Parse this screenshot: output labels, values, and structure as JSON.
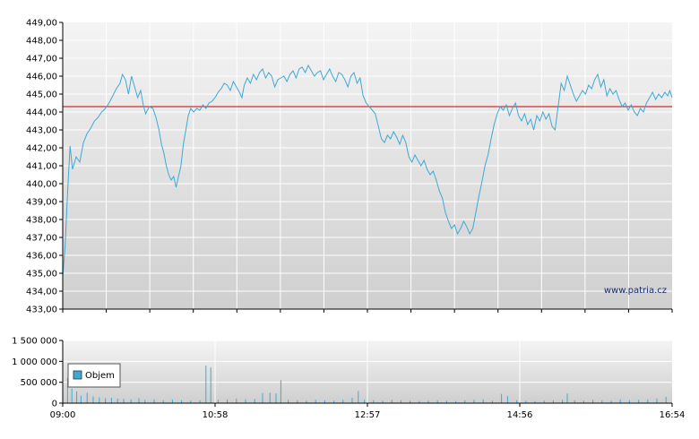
{
  "watermark": "www.patria.cz",
  "chart_data": [
    {
      "type": "line",
      "name": "price",
      "ylim": [
        433,
        449
      ],
      "yticks": [
        "449,00",
        "448,00",
        "447,00",
        "446,00",
        "445,00",
        "444,00",
        "443,00",
        "442,00",
        "441,00",
        "440,00",
        "439,00",
        "438,00",
        "437,00",
        "436,00",
        "435,00",
        "434,00",
        "433,00"
      ],
      "reference_value": 444.3,
      "reference_color": "#cc0000",
      "line_color": "#3fa9d6",
      "x_range": [
        0,
        100
      ],
      "points": [
        [
          0,
          434.8
        ],
        [
          0.4,
          436.5
        ],
        [
          0.8,
          439.5
        ],
        [
          1.2,
          442.1
        ],
        [
          1.6,
          440.8
        ],
        [
          2.2,
          441.5
        ],
        [
          2.8,
          441.2
        ],
        [
          3.4,
          442.3
        ],
        [
          4.0,
          442.8
        ],
        [
          4.6,
          443.1
        ],
        [
          5.2,
          443.5
        ],
        [
          5.8,
          443.7
        ],
        [
          6.4,
          444.0
        ],
        [
          7.0,
          444.2
        ],
        [
          7.6,
          444.5
        ],
        [
          8.2,
          444.9
        ],
        [
          8.8,
          445.3
        ],
        [
          9.4,
          445.6
        ],
        [
          9.8,
          446.1
        ],
        [
          10.3,
          445.8
        ],
        [
          10.8,
          445.0
        ],
        [
          11.3,
          446.0
        ],
        [
          11.8,
          445.4
        ],
        [
          12.3,
          444.8
        ],
        [
          12.8,
          445.2
        ],
        [
          13.2,
          444.4
        ],
        [
          13.6,
          443.9
        ],
        [
          14.2,
          444.3
        ],
        [
          14.8,
          444.2
        ],
        [
          15.3,
          443.7
        ],
        [
          15.8,
          443.0
        ],
        [
          16.2,
          442.2
        ],
        [
          16.6,
          441.7
        ],
        [
          17.0,
          441.0
        ],
        [
          17.4,
          440.5
        ],
        [
          17.8,
          440.2
        ],
        [
          18.2,
          440.4
        ],
        [
          18.6,
          439.8
        ],
        [
          19.0,
          440.4
        ],
        [
          19.4,
          441.0
        ],
        [
          19.8,
          442.2
        ],
        [
          20.2,
          443.0
        ],
        [
          20.6,
          443.8
        ],
        [
          21.0,
          444.2
        ],
        [
          21.5,
          444.0
        ],
        [
          22.0,
          444.2
        ],
        [
          22.5,
          444.1
        ],
        [
          23.0,
          444.4
        ],
        [
          23.5,
          444.2
        ],
        [
          24.0,
          444.5
        ],
        [
          24.5,
          444.6
        ],
        [
          25.0,
          444.8
        ],
        [
          25.5,
          445.1
        ],
        [
          26.0,
          445.3
        ],
        [
          26.5,
          445.6
        ],
        [
          27.0,
          445.5
        ],
        [
          27.5,
          445.2
        ],
        [
          28.0,
          445.7
        ],
        [
          28.5,
          445.4
        ],
        [
          29.0,
          445.1
        ],
        [
          29.4,
          444.8
        ],
        [
          29.8,
          445.5
        ],
        [
          30.3,
          445.9
        ],
        [
          30.8,
          445.6
        ],
        [
          31.3,
          446.1
        ],
        [
          31.8,
          445.8
        ],
        [
          32.3,
          446.2
        ],
        [
          32.8,
          446.4
        ],
        [
          33.3,
          445.9
        ],
        [
          33.8,
          446.2
        ],
        [
          34.3,
          446.0
        ],
        [
          34.8,
          445.4
        ],
        [
          35.3,
          445.8
        ],
        [
          35.8,
          445.9
        ],
        [
          36.3,
          446.0
        ],
        [
          36.8,
          445.7
        ],
        [
          37.3,
          446.1
        ],
        [
          37.8,
          446.3
        ],
        [
          38.3,
          445.9
        ],
        [
          38.8,
          446.4
        ],
        [
          39.3,
          446.5
        ],
        [
          39.8,
          446.2
        ],
        [
          40.3,
          446.6
        ],
        [
          40.8,
          446.3
        ],
        [
          41.3,
          446.0
        ],
        [
          41.8,
          446.2
        ],
        [
          42.3,
          446.3
        ],
        [
          42.8,
          445.8
        ],
        [
          43.3,
          446.1
        ],
        [
          43.8,
          446.4
        ],
        [
          44.3,
          446.0
        ],
        [
          44.8,
          445.7
        ],
        [
          45.3,
          446.2
        ],
        [
          45.8,
          446.1
        ],
        [
          46.3,
          445.8
        ],
        [
          46.8,
          445.4
        ],
        [
          47.3,
          446.0
        ],
        [
          47.8,
          446.2
        ],
        [
          48.3,
          445.6
        ],
        [
          48.8,
          445.9
        ],
        [
          49.3,
          444.9
        ],
        [
          49.8,
          444.5
        ],
        [
          50.3,
          444.3
        ],
        [
          50.8,
          444.1
        ],
        [
          51.3,
          443.9
        ],
        [
          51.8,
          443.2
        ],
        [
          52.3,
          442.5
        ],
        [
          52.8,
          442.3
        ],
        [
          53.3,
          442.7
        ],
        [
          53.8,
          442.5
        ],
        [
          54.3,
          442.9
        ],
        [
          54.8,
          442.6
        ],
        [
          55.3,
          442.2
        ],
        [
          55.8,
          442.7
        ],
        [
          56.3,
          442.3
        ],
        [
          56.8,
          441.5
        ],
        [
          57.3,
          441.2
        ],
        [
          57.8,
          441.6
        ],
        [
          58.3,
          441.3
        ],
        [
          58.8,
          441.0
        ],
        [
          59.3,
          441.3
        ],
        [
          59.8,
          440.8
        ],
        [
          60.3,
          440.5
        ],
        [
          60.8,
          440.7
        ],
        [
          61.3,
          440.2
        ],
        [
          61.8,
          439.6
        ],
        [
          62.3,
          439.2
        ],
        [
          62.8,
          438.4
        ],
        [
          63.3,
          437.9
        ],
        [
          63.8,
          437.5
        ],
        [
          64.3,
          437.7
        ],
        [
          64.8,
          437.2
        ],
        [
          65.3,
          437.5
        ],
        [
          65.8,
          437.9
        ],
        [
          66.3,
          437.6
        ],
        [
          66.8,
          437.2
        ],
        [
          67.3,
          437.5
        ],
        [
          67.8,
          438.4
        ],
        [
          68.3,
          439.3
        ],
        [
          68.8,
          440.1
        ],
        [
          69.3,
          441.0
        ],
        [
          69.8,
          441.6
        ],
        [
          70.3,
          442.5
        ],
        [
          70.8,
          443.3
        ],
        [
          71.3,
          443.9
        ],
        [
          71.8,
          444.3
        ],
        [
          72.3,
          444.1
        ],
        [
          72.8,
          444.4
        ],
        [
          73.3,
          443.8
        ],
        [
          73.8,
          444.2
        ],
        [
          74.3,
          444.5
        ],
        [
          74.8,
          443.8
        ],
        [
          75.3,
          443.5
        ],
        [
          75.8,
          443.9
        ],
        [
          76.3,
          443.3
        ],
        [
          76.8,
          443.6
        ],
        [
          77.3,
          443.0
        ],
        [
          77.8,
          443.8
        ],
        [
          78.3,
          443.5
        ],
        [
          78.8,
          444.0
        ],
        [
          79.3,
          443.6
        ],
        [
          79.8,
          443.9
        ],
        [
          80.3,
          443.2
        ],
        [
          80.8,
          443.0
        ],
        [
          81.3,
          444.3
        ],
        [
          81.8,
          445.6
        ],
        [
          82.3,
          445.2
        ],
        [
          82.8,
          446.0
        ],
        [
          83.3,
          445.5
        ],
        [
          83.8,
          445.0
        ],
        [
          84.3,
          444.6
        ],
        [
          84.8,
          444.9
        ],
        [
          85.3,
          445.2
        ],
        [
          85.8,
          445.0
        ],
        [
          86.3,
          445.5
        ],
        [
          86.8,
          445.3
        ],
        [
          87.3,
          445.8
        ],
        [
          87.8,
          446.1
        ],
        [
          88.3,
          445.4
        ],
        [
          88.8,
          445.8
        ],
        [
          89.3,
          444.9
        ],
        [
          89.8,
          445.3
        ],
        [
          90.3,
          445.0
        ],
        [
          90.8,
          445.2
        ],
        [
          91.3,
          444.7
        ],
        [
          91.8,
          444.3
        ],
        [
          92.3,
          444.5
        ],
        [
          92.8,
          444.1
        ],
        [
          93.3,
          444.4
        ],
        [
          93.8,
          444.0
        ],
        [
          94.3,
          443.8
        ],
        [
          94.8,
          444.2
        ],
        [
          95.3,
          444.0
        ],
        [
          95.8,
          444.5
        ],
        [
          96.3,
          444.8
        ],
        [
          96.8,
          445.1
        ],
        [
          97.3,
          444.7
        ],
        [
          97.8,
          445.0
        ],
        [
          98.3,
          444.8
        ],
        [
          98.8,
          445.1
        ],
        [
          99.3,
          444.9
        ],
        [
          99.6,
          445.2
        ],
        [
          100,
          444.8
        ]
      ]
    },
    {
      "type": "bar",
      "name": "volume",
      "ylim": [
        0,
        1500000
      ],
      "yticks": [
        "1 500 000",
        "1 000 000",
        "500 000",
        "0"
      ],
      "legend": "Objem",
      "bar_color": "#3fa9d6",
      "xticks": [
        "09:00",
        "10:58",
        "12:57",
        "14:56",
        "16:54"
      ],
      "bars": [
        [
          0.8,
          600000
        ],
        [
          1.5,
          350000
        ],
        [
          2.3,
          280000
        ],
        [
          3.0,
          180000
        ],
        [
          4.0,
          250000
        ],
        [
          5.0,
          160000
        ],
        [
          6.0,
          140000
        ],
        [
          7.0,
          120000
        ],
        [
          8.0,
          130000
        ],
        [
          9.0,
          110000
        ],
        [
          10.0,
          100000
        ],
        [
          11.2,
          90000
        ],
        [
          12.5,
          120000
        ],
        [
          13.5,
          80000
        ],
        [
          15.0,
          90000
        ],
        [
          16.5,
          70000
        ],
        [
          18.0,
          85000
        ],
        [
          19.5,
          70000
        ],
        [
          21.0,
          60000
        ],
        [
          22.5,
          70000
        ],
        [
          23.5,
          900000
        ],
        [
          24.3,
          850000
        ],
        [
          25.5,
          80000
        ],
        [
          27.0,
          90000
        ],
        [
          28.5,
          110000
        ],
        [
          30.0,
          90000
        ],
        [
          31.5,
          100000
        ],
        [
          32.8,
          240000
        ],
        [
          34.0,
          250000
        ],
        [
          35.0,
          230000
        ],
        [
          35.8,
          550000
        ],
        [
          37.0,
          80000
        ],
        [
          38.5,
          70000
        ],
        [
          40.0,
          60000
        ],
        [
          41.5,
          80000
        ],
        [
          43.0,
          70000
        ],
        [
          44.5,
          60000
        ],
        [
          46.0,
          80000
        ],
        [
          47.5,
          130000
        ],
        [
          48.5,
          290000
        ],
        [
          49.5,
          80000
        ],
        [
          51.0,
          70000
        ],
        [
          52.5,
          60000
        ],
        [
          54.0,
          80000
        ],
        [
          55.5,
          70000
        ],
        [
          57.0,
          60000
        ],
        [
          58.5,
          50000
        ],
        [
          60.0,
          60000
        ],
        [
          61.5,
          70000
        ],
        [
          63.0,
          60000
        ],
        [
          64.5,
          50000
        ],
        [
          66.0,
          70000
        ],
        [
          67.5,
          80000
        ],
        [
          69.0,
          90000
        ],
        [
          70.5,
          60000
        ],
        [
          72.0,
          220000
        ],
        [
          73.0,
          170000
        ],
        [
          74.5,
          70000
        ],
        [
          76.0,
          60000
        ],
        [
          77.5,
          50000
        ],
        [
          79.0,
          60000
        ],
        [
          80.5,
          70000
        ],
        [
          82.0,
          80000
        ],
        [
          82.8,
          230000
        ],
        [
          84.0,
          70000
        ],
        [
          85.5,
          60000
        ],
        [
          87.0,
          80000
        ],
        [
          88.5,
          70000
        ],
        [
          90.0,
          60000
        ],
        [
          91.5,
          90000
        ],
        [
          93.0,
          70000
        ],
        [
          94.5,
          80000
        ],
        [
          96.0,
          90000
        ],
        [
          97.5,
          110000
        ],
        [
          99.0,
          150000
        ]
      ]
    }
  ]
}
